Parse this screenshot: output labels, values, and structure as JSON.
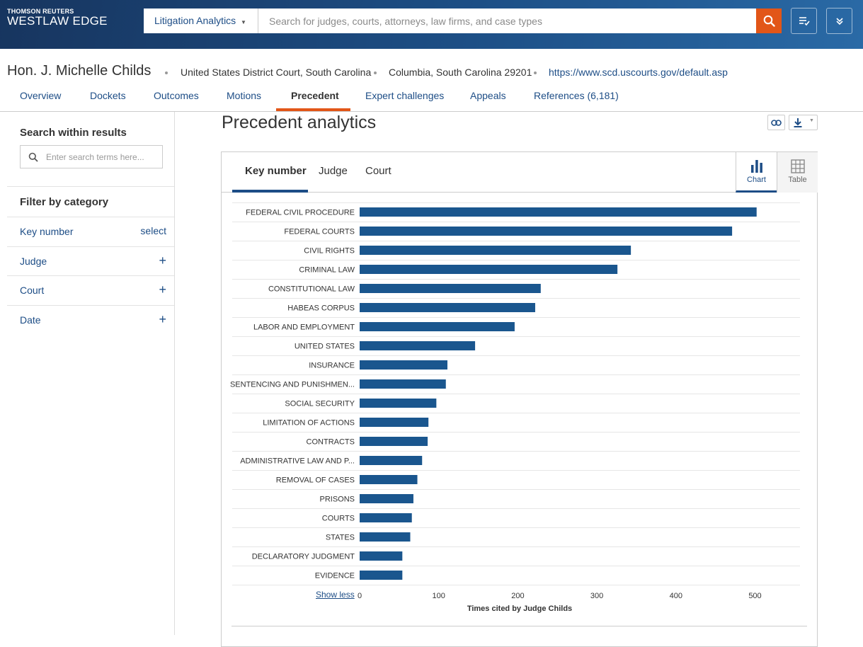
{
  "brand": {
    "line1": "THOMSON REUTERS",
    "line2": "WESTLAW EDGE"
  },
  "topbar": {
    "product": "Litigation Analytics",
    "search_placeholder": "Search for judges, courts, attorneys, law firms, and case types",
    "accent_color": "#e25618"
  },
  "judge": {
    "name": "Hon. J. Michelle Childs",
    "court": "United States District Court, South Carolina",
    "location": "Columbia, South Carolina 29201",
    "url": "https://www.scd.uscourts.gov/default.asp"
  },
  "nav_tabs": [
    {
      "label": "Overview"
    },
    {
      "label": "Dockets"
    },
    {
      "label": "Outcomes"
    },
    {
      "label": "Motions"
    },
    {
      "label": "Precedent",
      "active": true
    },
    {
      "label": "Expert challenges"
    },
    {
      "label": "Appeals"
    },
    {
      "label": "References (6,181)"
    }
  ],
  "sidebar": {
    "search_title": "Search within results",
    "search_placeholder": "Enter search terms here...",
    "filter_title": "Filter by category",
    "filters": [
      {
        "label": "Key number",
        "action": "select"
      },
      {
        "label": "Judge",
        "action": "+"
      },
      {
        "label": "Court",
        "action": "+"
      },
      {
        "label": "Date",
        "action": "+"
      }
    ]
  },
  "main": {
    "title": "Precedent analytics",
    "card_tabs": [
      {
        "label": "Key number",
        "active": true
      },
      {
        "label": "Judge"
      },
      {
        "label": "Court"
      }
    ],
    "view_toggle": {
      "chart": "Chart",
      "table": "Table"
    },
    "show_less": "Show less"
  },
  "chart_data": {
    "type": "bar",
    "orientation": "horizontal",
    "categories": [
      "FEDERAL CIVIL PROCEDURE",
      "FEDERAL COURTS",
      "CIVIL RIGHTS",
      "CRIMINAL LAW",
      "CONSTITUTIONAL LAW",
      "HABEAS CORPUS",
      "LABOR AND EMPLOYMENT",
      "UNITED STATES",
      "INSURANCE",
      "SENTENCING AND PUNISHMEN...",
      "SOCIAL SECURITY",
      "LIMITATION OF ACTIONS",
      "CONTRACTS",
      "ADMINISTRATIVE LAW AND P...",
      "REMOVAL OF CASES",
      "PRISONS",
      "COURTS",
      "STATES",
      "DECLARATORY JUDGMENT",
      "EVIDENCE"
    ],
    "values": [
      502,
      471,
      343,
      326,
      229,
      222,
      196,
      146,
      111,
      109,
      97,
      87,
      86,
      79,
      73,
      68,
      66,
      64,
      54,
      54
    ],
    "xlabel": "Times cited by Judge Childs",
    "ylabel": "",
    "xlim": [
      0,
      540
    ],
    "xticks": [
      0,
      100,
      200,
      300,
      400,
      500
    ],
    "bar_color": "#1a568e",
    "grid": "horizontal row separators"
  }
}
